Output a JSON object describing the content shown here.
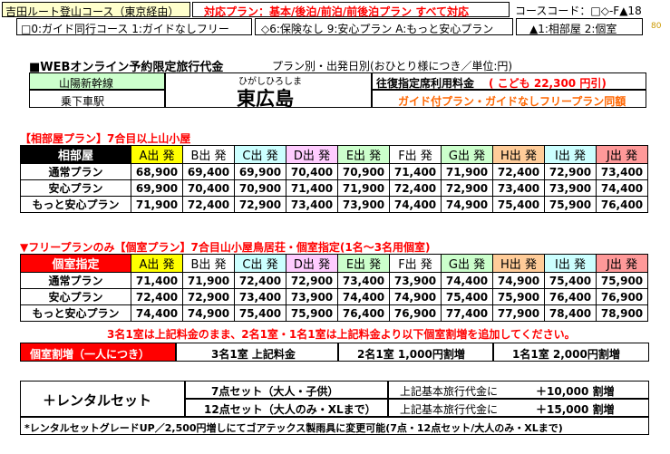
{
  "header": {
    "route": "吉田ルート登山コース（東京経由）",
    "plans": "対応プラン：基本/後泊/前泊/前後泊プラン すべて対応",
    "course_code": "コースコード：□◇-F▲18",
    "page_no": "80",
    "legend_guide": "□0:ガイド同行コース 1:ガイドなしフリー",
    "legend_insurance": "◇6:保険なし 9:安心プラン A:もっと安心プラン",
    "legend_room": "▲1:相部屋 2:個室"
  },
  "fare": {
    "title": "■WEBオンライン予約限定旅行代金",
    "subtitle": "プラン別・出発日別(おひとり様につき／単位:円)",
    "line": "山陽新幹線",
    "station_label": "乗下車駅",
    "station_kana": "ひがしひろしま",
    "station": "東広島",
    "child_fare_label": "往復指定席利用料金",
    "child_fare": "( こども 22,300 円引)",
    "guide_note": "ガイド付プラン・ガイドなしフリープラン同額"
  },
  "colors": {
    "A": "#ffff00",
    "B": "#ffffff",
    "C": "#ccffff",
    "D": "#ffccff",
    "E": "#ccffcc",
    "F": "#ffffff",
    "G": "#ccffcc",
    "H": "#ffcc99",
    "I": "#ccffff",
    "J": "#ff9999",
    "dorm_header": "#000000",
    "private_header": "#ff0000",
    "accent_red": "#ff0000",
    "accent_orange": "#ff6600"
  },
  "departures": [
    "A出 発",
    "B出 発",
    "C出 発",
    "D出 発",
    "E出 発",
    "F出 発",
    "G出 発",
    "H出 発",
    "I出 発",
    "J出 発"
  ],
  "dorm": {
    "section_title": "【相部屋プラン】7合目以上山小屋",
    "header": "相部屋",
    "rows": [
      {
        "name": "通常プラン",
        "prices": [
          "68,900",
          "69,400",
          "69,900",
          "70,400",
          "70,900",
          "71,400",
          "71,900",
          "72,400",
          "72,900",
          "73,400"
        ]
      },
      {
        "name": "安心プラン",
        "prices": [
          "69,900",
          "70,400",
          "70,900",
          "71,400",
          "71,900",
          "72,400",
          "72,900",
          "73,400",
          "73,900",
          "74,400"
        ]
      },
      {
        "name": "もっと安心プラン",
        "prices": [
          "71,900",
          "72,400",
          "72,900",
          "73,400",
          "73,900",
          "74,400",
          "74,900",
          "75,400",
          "75,900",
          "76,400"
        ]
      }
    ]
  },
  "private": {
    "section_title": "▼フリープランのみ【個室プラン】7合目山小屋鳥居荘・個室指定(1名～3名用個室)",
    "header": "個室指定",
    "rows": [
      {
        "name": "通常プラン",
        "prices": [
          "71,400",
          "71,900",
          "72,400",
          "72,900",
          "73,400",
          "73,900",
          "74,400",
          "74,900",
          "75,400",
          "75,900"
        ]
      },
      {
        "name": "安心プラン",
        "prices": [
          "72,400",
          "72,900",
          "73,400",
          "73,900",
          "74,400",
          "74,900",
          "75,400",
          "75,900",
          "76,400",
          "76,900"
        ]
      },
      {
        "name": "もっと安心プラン",
        "prices": [
          "74,400",
          "74,900",
          "75,400",
          "75,900",
          "76,400",
          "76,900",
          "77,400",
          "77,900",
          "78,400",
          "78,900"
        ]
      }
    ],
    "note": "3名1室は上記料金のまま、2名1室・1名1室は上記料金より以下個室割増を追加してください。",
    "surcharge_label": "個室割増（一人につき）",
    "surcharge_3": "3名1室 上記料金",
    "surcharge_2": "2名1室 1,000円割増",
    "surcharge_1": "1名1室 2,000円割増"
  },
  "rental": {
    "title": "＋レンタルセット",
    "set7": "7点セット（大人・子供）",
    "set12": "12点セット（大人のみ・XLまで）",
    "base7": "上記基本旅行代金に",
    "amount7": "＋10,000 割増",
    "base12": "上記基本旅行代金に",
    "amount12": "＋15,000 割増",
    "footnote": "*レンタルセットグレードUP／2,500円増しにてゴアテックス製雨具に変更可能(7点・12点セット/大人のみ・XLまで)"
  }
}
